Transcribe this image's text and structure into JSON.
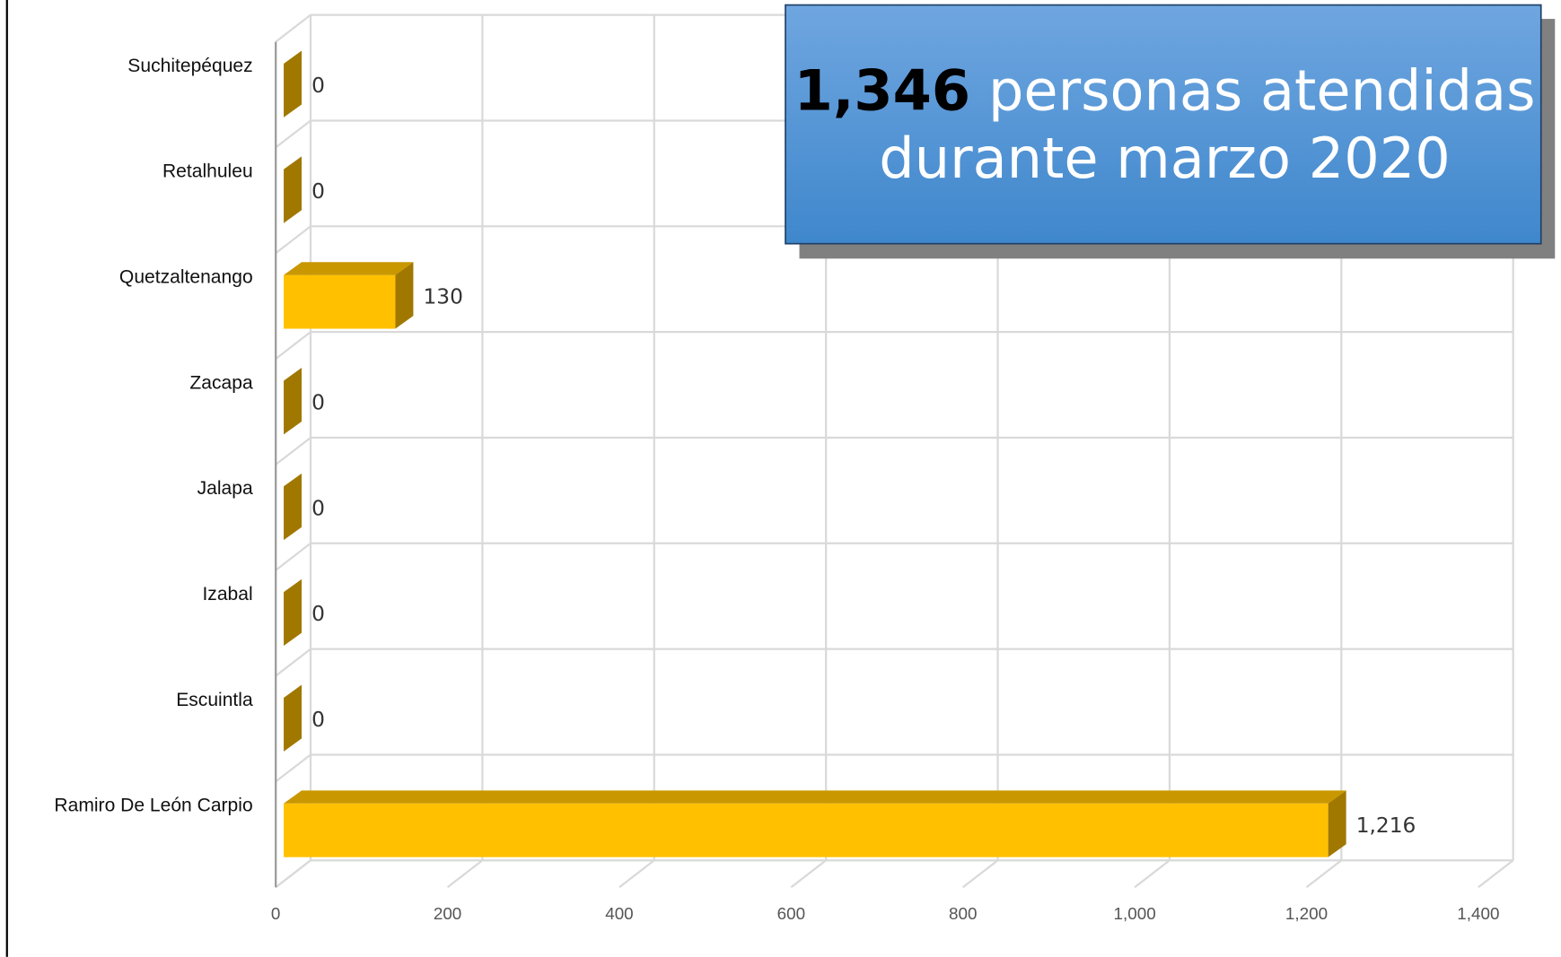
{
  "chart_data": {
    "type": "bar",
    "orientation": "horizontal",
    "categories": [
      "Suchitepéquez",
      "Retalhuleu",
      "Quetzaltenango",
      "Zacapa",
      "Jalapa",
      "Izabal",
      "Escuintla",
      "Ramiro De León Carpio"
    ],
    "values": [
      0,
      0,
      130,
      0,
      0,
      0,
      0,
      1216
    ],
    "value_labels": [
      "0",
      "0",
      "130",
      "0",
      "0",
      "0",
      "0",
      "1,216"
    ],
    "color": "#ffc000",
    "xlim": [
      0,
      1400
    ],
    "xticks": [
      0,
      200,
      400,
      600,
      800,
      {
        "value": 1000,
        "label": "1,000"
      },
      {
        "value": 1200,
        "label": "1,200"
      },
      {
        "value": 1400,
        "label": "1,400"
      }
    ],
    "grid": true,
    "annotation": {
      "bold": "1,346",
      "line1": "personas atendidas",
      "line2": "durante marzo 2020"
    }
  }
}
